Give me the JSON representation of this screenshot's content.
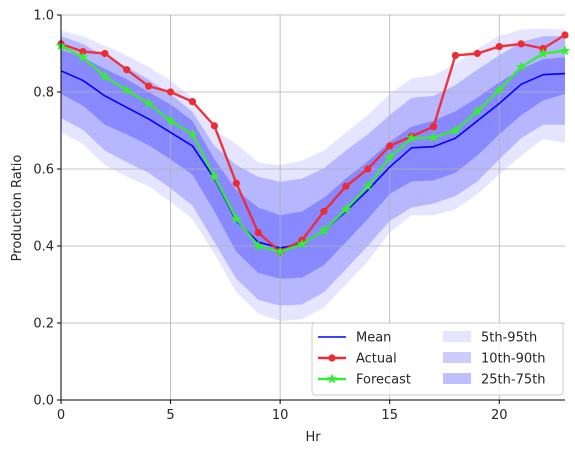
{
  "chart_data": {
    "type": "line",
    "xlabel": "Hr",
    "ylabel": "Production Ratio",
    "xlim": [
      0,
      23
    ],
    "ylim": [
      0,
      1.0
    ],
    "x_ticks": [
      0,
      5,
      10,
      15,
      20
    ],
    "y_ticks": [
      0.0,
      0.2,
      0.4,
      0.6,
      0.8,
      1.0
    ],
    "x_tick_labels": [
      "0",
      "5",
      "10",
      "15",
      "20"
    ],
    "y_tick_labels": [
      "0.0",
      "0.2",
      "0.4",
      "0.6",
      "0.8",
      "1.0"
    ],
    "grid": true,
    "legend_position": "bottom-right",
    "x": [
      0,
      1,
      2,
      3,
      4,
      5,
      6,
      7,
      8,
      9,
      10,
      11,
      12,
      13,
      14,
      15,
      16,
      17,
      18,
      19,
      20,
      21,
      22,
      23
    ],
    "series": [
      {
        "name": "Mean",
        "color": "#0000ff",
        "marker": "none",
        "values": [
          0.855,
          0.83,
          0.79,
          0.76,
          0.73,
          0.695,
          0.66,
          0.575,
          0.465,
          0.41,
          0.395,
          0.405,
          0.44,
          0.49,
          0.545,
          0.605,
          0.655,
          0.658,
          0.68,
          0.725,
          0.77,
          0.82,
          0.845,
          0.848
        ]
      },
      {
        "name": "Actual",
        "color": "#ee2a33",
        "marker": "circle",
        "values": [
          0.925,
          0.905,
          0.9,
          0.858,
          0.815,
          0.8,
          0.775,
          0.712,
          0.563,
          0.435,
          0.385,
          0.415,
          0.49,
          0.555,
          0.6,
          0.66,
          0.685,
          0.71,
          0.895,
          0.9,
          0.918,
          0.925,
          0.913,
          0.948
        ]
      },
      {
        "name": "Forecast",
        "color": "#33ee33",
        "marker": "star",
        "values": [
          0.92,
          0.89,
          0.84,
          0.805,
          0.77,
          0.725,
          0.69,
          0.58,
          0.47,
          0.4,
          0.385,
          0.405,
          0.44,
          0.495,
          0.555,
          0.63,
          0.68,
          0.682,
          0.7,
          0.75,
          0.805,
          0.865,
          0.9,
          0.907
        ]
      }
    ],
    "bands": [
      {
        "name": "5th-95th",
        "color": "#0000ff",
        "opacity": 0.1,
        "lower": [
          0.695,
          0.665,
          0.61,
          0.58,
          0.555,
          0.515,
          0.47,
          0.38,
          0.28,
          0.225,
          0.205,
          0.21,
          0.24,
          0.3,
          0.36,
          0.435,
          0.48,
          0.48,
          0.495,
          0.535,
          0.585,
          0.635,
          0.678,
          0.668
        ],
        "upper": [
          0.96,
          0.945,
          0.92,
          0.895,
          0.865,
          0.83,
          0.785,
          0.7,
          0.665,
          0.617,
          0.61,
          0.622,
          0.648,
          0.695,
          0.74,
          0.795,
          0.835,
          0.843,
          0.873,
          0.913,
          0.945,
          0.962,
          0.965,
          0.962
        ]
      },
      {
        "name": "10th-90th",
        "color": "#0000ff",
        "opacity": 0.2,
        "lower": [
          0.732,
          0.702,
          0.648,
          0.618,
          0.59,
          0.55,
          0.505,
          0.41,
          0.315,
          0.26,
          0.245,
          0.248,
          0.28,
          0.34,
          0.4,
          0.465,
          0.5,
          0.51,
          0.53,
          0.568,
          0.625,
          0.68,
          0.715,
          0.715
        ],
        "upper": [
          0.945,
          0.925,
          0.892,
          0.865,
          0.832,
          0.795,
          0.748,
          0.66,
          0.61,
          0.58,
          0.567,
          0.575,
          0.602,
          0.648,
          0.69,
          0.74,
          0.785,
          0.79,
          0.818,
          0.858,
          0.895,
          0.93,
          0.945,
          0.945
        ]
      },
      {
        "name": "25th-75th",
        "color": "#0000ff",
        "opacity": 0.25,
        "lower": [
          0.795,
          0.765,
          0.715,
          0.69,
          0.662,
          0.625,
          0.585,
          0.49,
          0.385,
          0.33,
          0.315,
          0.318,
          0.35,
          0.41,
          0.47,
          0.535,
          0.568,
          0.57,
          0.59,
          0.635,
          0.69,
          0.74,
          0.778,
          0.795
        ],
        "upper": [
          0.91,
          0.89,
          0.86,
          0.833,
          0.8,
          0.768,
          0.725,
          0.625,
          0.545,
          0.5,
          0.48,
          0.49,
          0.525,
          0.575,
          0.62,
          0.67,
          0.71,
          0.725,
          0.75,
          0.785,
          0.825,
          0.86,
          0.885,
          0.89
        ]
      }
    ]
  }
}
